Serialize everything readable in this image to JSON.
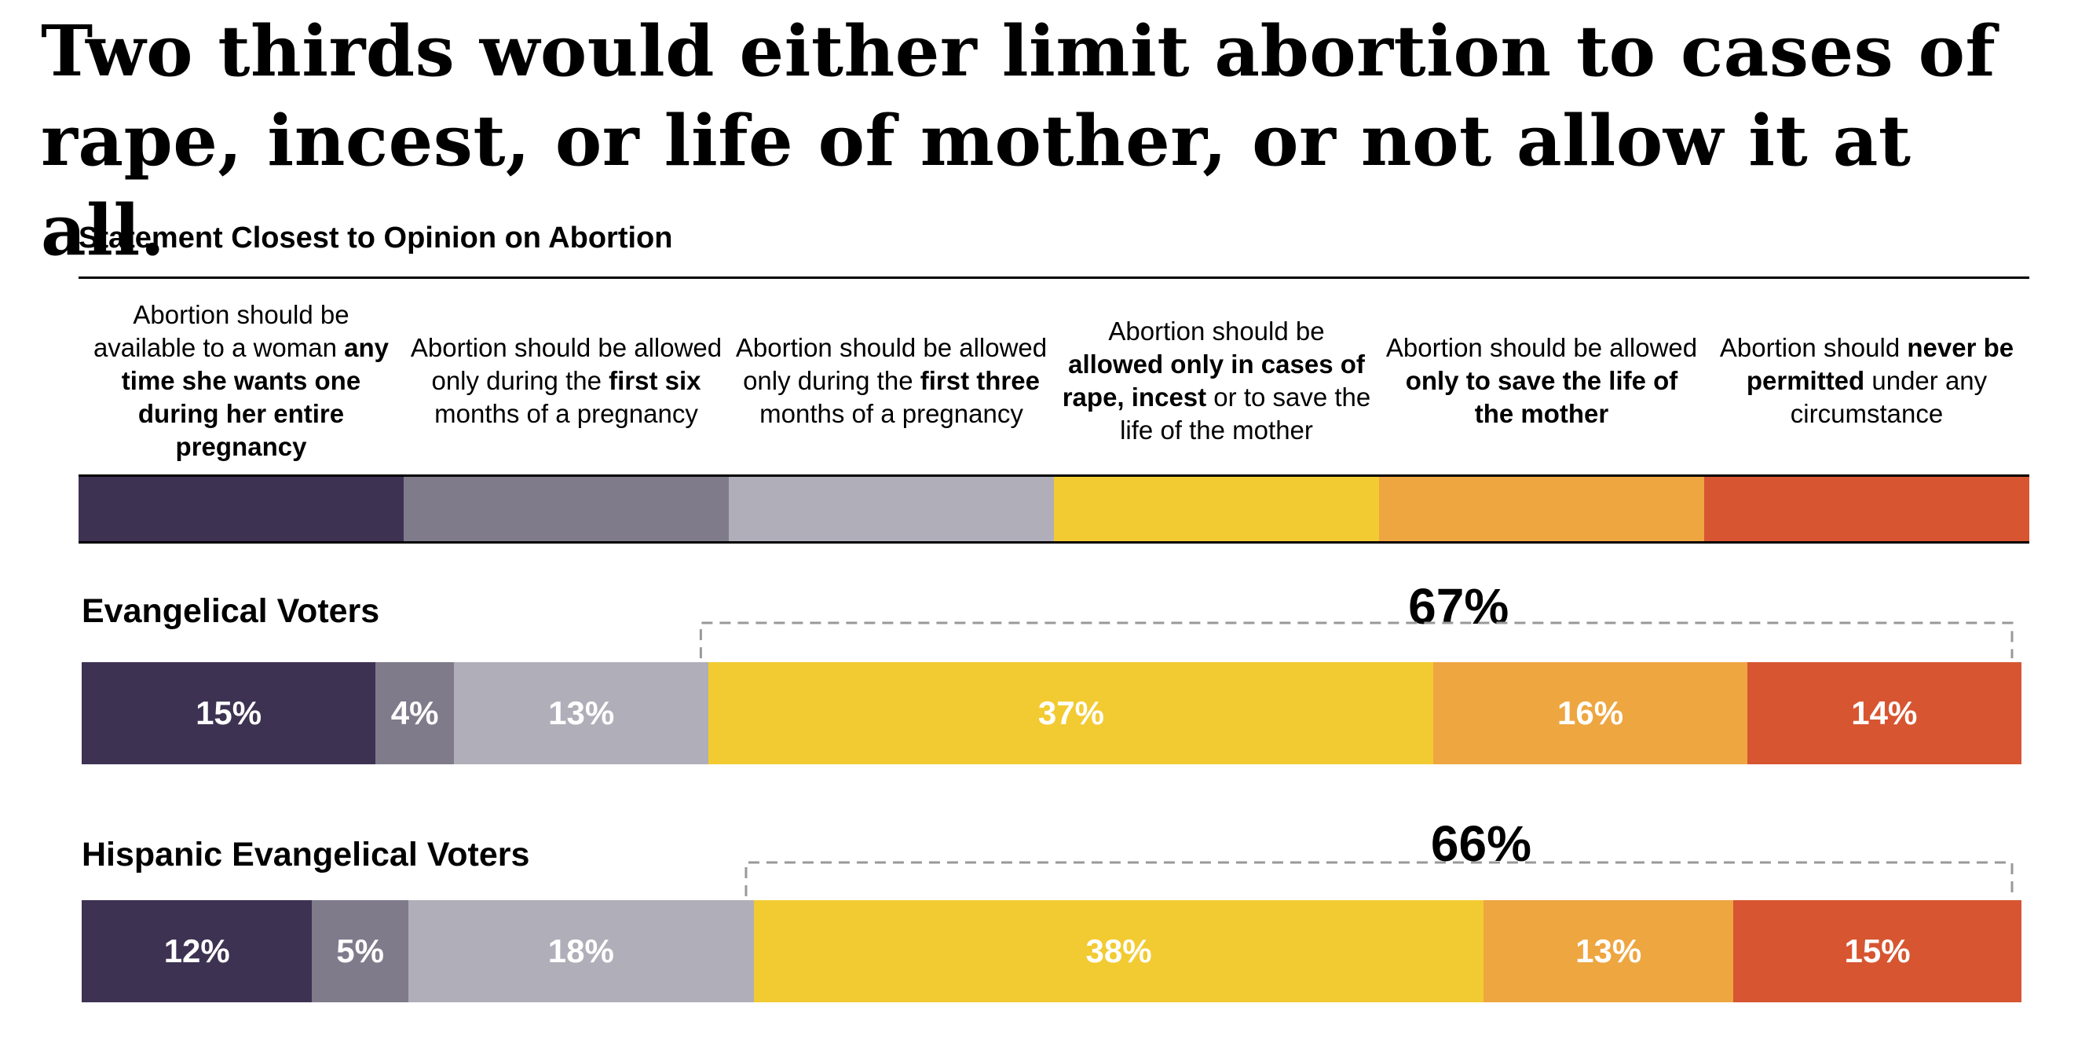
{
  "title": "Two thirds would either limit abortion to cases of rape, incest, or life of mother, or not allow it at all.",
  "subtitle": "Statement Closest to Opinion on Abortion",
  "colors": [
    "#3e3253",
    "#7f7b8b",
    "#b0aeb9",
    "#f2cb32",
    "#eea641",
    "#d75531"
  ],
  "legend": [
    {
      "parts": [
        {
          "text": "Abortion should be available to a woman ",
          "bold": false
        },
        {
          "text": "any time she wants one during her entire pregnancy",
          "bold": true
        }
      ]
    },
    {
      "parts": [
        {
          "text": "Abortion should be allowed only during the ",
          "bold": false
        },
        {
          "text": "first six",
          "bold": true
        },
        {
          "text": " months of a pregnancy",
          "bold": false
        }
      ]
    },
    {
      "parts": [
        {
          "text": "Abortion should be allowed only during the ",
          "bold": false
        },
        {
          "text": "first three",
          "bold": true
        },
        {
          "text": " months of a pregnancy",
          "bold": false
        }
      ]
    },
    {
      "parts": [
        {
          "text": "Abortion should be ",
          "bold": false
        },
        {
          "text": "allowed only in cases of rape, incest",
          "bold": true
        },
        {
          "text": " or to save the life of the mother",
          "bold": false
        }
      ]
    },
    {
      "parts": [
        {
          "text": "Abortion should be allowed ",
          "bold": false
        },
        {
          "text": "only to save the life of the mother",
          "bold": true
        }
      ]
    },
    {
      "parts": [
        {
          "text": "Abortion should ",
          "bold": false
        },
        {
          "text": "never be permitted",
          "bold": true
        },
        {
          "text": " under any circumstance",
          "bold": false
        }
      ]
    }
  ],
  "chart_data": {
    "type": "bar",
    "orientation": "horizontal",
    "stacked": true,
    "title": "Statement Closest to Opinion on Abortion",
    "categories": [
      "Abortion should be available to a woman any time she wants one during her entire pregnancy",
      "Abortion should be allowed only during the first six months of a pregnancy",
      "Abortion should be allowed only during the first three months of a pregnancy",
      "Abortion should be allowed only in cases of rape, incest or to save the life of the mother",
      "Abortion should be allowed only to save the life of the mother",
      "Abortion should never be permitted under any circumstance"
    ],
    "series": [
      {
        "name": "Evangelical Voters",
        "values": [
          15,
          4,
          13,
          37,
          16,
          14
        ],
        "labels": [
          "15%",
          "4%",
          "13%",
          "37%",
          "16%",
          "14%"
        ],
        "bracket": {
          "label": "67%",
          "from": 3,
          "to": 5
        }
      },
      {
        "name": "Hispanic Evangelical Voters",
        "values": [
          12,
          5,
          18,
          38,
          13,
          15
        ],
        "labels": [
          "12%",
          "5%",
          "18%",
          "38%",
          "13%",
          "15%"
        ],
        "bracket": {
          "label": "66%",
          "from": 3,
          "to": 5
        }
      }
    ]
  }
}
